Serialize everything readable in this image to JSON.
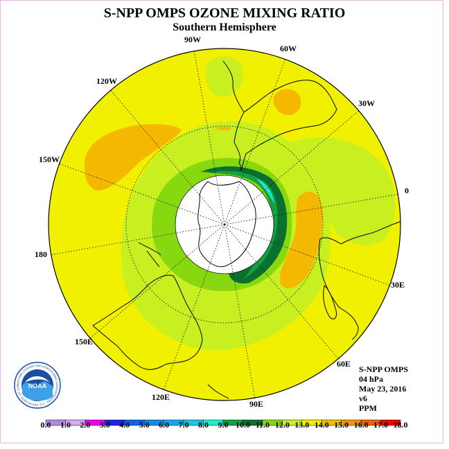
{
  "title": "S-NPP OMPS OZONE MIXING RATIO",
  "subtitle": "Southern Hemisphere",
  "longitude_labels": {
    "w90": "90W",
    "w60": "60W",
    "w30": "30W",
    "lon0": "0",
    "e30": "30E",
    "e60": "60E",
    "e90": "90E",
    "e120": "120E",
    "e150": "150E",
    "lon180": "180",
    "w150": "150W",
    "w120": "120W"
  },
  "info": {
    "instrument": "S-NPP OMPS",
    "level": "04 hPa",
    "date": "May 23, 2016",
    "version": "v6",
    "units": "PPM"
  },
  "logo": {
    "text": "NOAA",
    "ring_text": "NATIONAL OCEANIC AND ATMOSPHERIC ADMINISTRATION · U.S. DEPARTMENT OF COMMERCE"
  },
  "colorbar": {
    "labels": [
      "0.0",
      "1.0",
      "2.0",
      "3.0",
      "4.0",
      "5.0",
      "6.0",
      "7.0",
      "8.0",
      "9.0",
      "10.0",
      "11.0",
      "12.0",
      "13.0",
      "14.0",
      "15.0",
      "16.0",
      "17.0",
      "18.0"
    ],
    "colors": [
      "#b088e8",
      "#d8a8f0",
      "#e800e8",
      "#2020e0",
      "#0a66e8",
      "#1888e8",
      "#18a8e8",
      "#18c8e8",
      "#20f0d0",
      "#14a040",
      "#0a7030",
      "#84d810",
      "#c8f020",
      "#f0f000",
      "#f0c000",
      "#f09800",
      "#f06000",
      "#f00000",
      "#806040"
    ]
  },
  "map_colors": {
    "background": "#f0f000",
    "orange": "#f5b800",
    "light_green": "#c8f020",
    "green": "#88d810",
    "dark_green": "#0a7030",
    "mid_green": "#14a040",
    "cyan": "#20e8d0"
  }
}
